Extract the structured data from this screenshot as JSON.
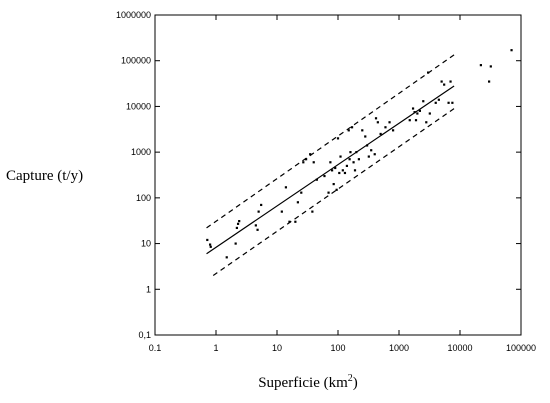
{
  "chart_data": {
    "type": "scatter",
    "title": "",
    "xlabel": "Superficie (km",
    "xlabel_sup": "2",
    "xlabel_close": ")",
    "ylabel": "Capture (t/y)",
    "x_scale": "log",
    "y_scale": "log",
    "xlim": [
      0.1,
      100000
    ],
    "ylim": [
      0.1,
      1000000
    ],
    "x_ticks": [
      0.1,
      1,
      10,
      100,
      1000,
      10000,
      100000
    ],
    "x_tick_labels": [
      "0.1",
      "1",
      "10",
      "100",
      "1000",
      "10000",
      "100000"
    ],
    "y_ticks": [
      0.1,
      1,
      10,
      100,
      1000,
      10000,
      100000,
      1000000
    ],
    "y_tick_labels": [
      "0,1",
      "1",
      "10",
      "100",
      "1000",
      "10000",
      "100000",
      "1000000"
    ],
    "grid": false,
    "points": [
      [
        0.72,
        12
      ],
      [
        0.8,
        9.5
      ],
      [
        0.82,
        8.5
      ],
      [
        1.5,
        5
      ],
      [
        2.1,
        10
      ],
      [
        2.2,
        22
      ],
      [
        2.3,
        27
      ],
      [
        2.4,
        31
      ],
      [
        4.5,
        25
      ],
      [
        4.8,
        20
      ],
      [
        5,
        50
      ],
      [
        5.5,
        70
      ],
      [
        12,
        50
      ],
      [
        14,
        170
      ],
      [
        16,
        30
      ],
      [
        20,
        30
      ],
      [
        22,
        80
      ],
      [
        25,
        130
      ],
      [
        27,
        600
      ],
      [
        30,
        700
      ],
      [
        35,
        900
      ],
      [
        38,
        50
      ],
      [
        40,
        600
      ],
      [
        45,
        250
      ],
      [
        60,
        300
      ],
      [
        70,
        130
      ],
      [
        75,
        600
      ],
      [
        80,
        400
      ],
      [
        85,
        200
      ],
      [
        90,
        450
      ],
      [
        95,
        150
      ],
      [
        100,
        2000
      ],
      [
        105,
        350
      ],
      [
        110,
        800
      ],
      [
        120,
        400
      ],
      [
        130,
        350
      ],
      [
        140,
        500
      ],
      [
        150,
        3000
      ],
      [
        155,
        700
      ],
      [
        160,
        1000
      ],
      [
        170,
        3500
      ],
      [
        180,
        600
      ],
      [
        190,
        400
      ],
      [
        200,
        1000
      ],
      [
        220,
        700
      ],
      [
        250,
        3000
      ],
      [
        280,
        2200
      ],
      [
        300,
        1400
      ],
      [
        320,
        800
      ],
      [
        350,
        1100
      ],
      [
        400,
        900
      ],
      [
        420,
        5500
      ],
      [
        450,
        4500
      ],
      [
        500,
        2500
      ],
      [
        600,
        3500
      ],
      [
        700,
        4500
      ],
      [
        800,
        3000
      ],
      [
        1500,
        5000
      ],
      [
        1700,
        9000
      ],
      [
        1800,
        7500
      ],
      [
        1900,
        5000
      ],
      [
        2000,
        7000
      ],
      [
        2200,
        8000
      ],
      [
        2500,
        13000
      ],
      [
        2800,
        4500
      ],
      [
        3000,
        55000
      ],
      [
        3200,
        7000
      ],
      [
        4000,
        12000
      ],
      [
        4500,
        14000
      ],
      [
        5000,
        35000
      ],
      [
        5500,
        30000
      ],
      [
        6500,
        12000
      ],
      [
        7000,
        35000
      ],
      [
        7500,
        12000
      ],
      [
        22000,
        80000
      ],
      [
        30000,
        35000
      ],
      [
        32000,
        75000
      ],
      [
        70000,
        170000
      ]
    ],
    "regression_line": {
      "x": [
        0.7,
        8000
      ],
      "y": [
        6,
        28000
      ]
    },
    "upper_bound": {
      "x": [
        0.7,
        9000
      ],
      "y": [
        22,
        150000
      ]
    },
    "lower_bound": {
      "x": [
        0.9,
        9000
      ],
      "y": [
        2,
        10000
      ]
    }
  }
}
